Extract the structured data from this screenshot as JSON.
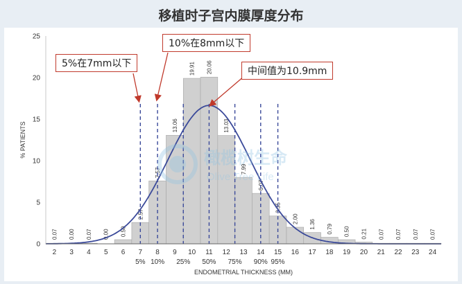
{
  "chart_data": {
    "type": "bar",
    "title": "移植时子宫内膜厚度分布",
    "xlabel": "ENDOMETRIAL THICKNESS (MM)",
    "ylabel": "% PATIENTS",
    "ylim": [
      0,
      25
    ],
    "yticks": [
      0,
      5,
      10,
      15,
      20,
      25
    ],
    "categories": [
      "2",
      "3",
      "4",
      "5",
      "6",
      "7",
      "8",
      "9",
      "10",
      "11",
      "12",
      "13",
      "14",
      "15",
      "16",
      "17",
      "18",
      "19",
      "20",
      "21",
      "22",
      "23",
      "24"
    ],
    "values": [
      0.07,
      0.0,
      0.07,
      0.0,
      0.5,
      2.57,
      7.57,
      13.06,
      19.91,
      20.06,
      13.03,
      7.99,
      6.07,
      3.35,
      2.0,
      1.36,
      0.79,
      0.5,
      0.21,
      0.07,
      0.07,
      0.07,
      0.07
    ],
    "value_labels": [
      "0.07",
      "0.00",
      "0.07",
      "0.00",
      "0.50",
      "2.57",
      "7.57",
      "13.06",
      "19.91",
      "20.06",
      "13.03",
      "7.99",
      "6.07",
      "3.35",
      "2.00",
      "1.36",
      "0.79",
      "0.50",
      "0.21",
      "0.07",
      "0.07",
      "0.07",
      "0.07"
    ],
    "bar_color": "#d0d0d0",
    "bar_edge_color": "#a6a6a6",
    "curve": {
      "type": "normal-fit",
      "mean": 11.0,
      "sd": 2.4,
      "color": "#3b4a9a"
    },
    "percentile_lines": [
      {
        "x": 7,
        "label": "5%"
      },
      {
        "x": 8,
        "label": "10%"
      },
      {
        "x": 9.5,
        "label": "25%"
      },
      {
        "x": 11,
        "label": "50%"
      },
      {
        "x": 12.5,
        "label": "75%"
      },
      {
        "x": 14,
        "label": "90%"
      },
      {
        "x": 15,
        "label": "95%"
      }
    ],
    "percentile_line_color": "#3b4a9a",
    "annotations": [
      {
        "text": "5%在7mm以下",
        "target_x": 7
      },
      {
        "text": "10%在8mm以下",
        "target_x": 8
      },
      {
        "text": "中间值为10.9mm",
        "target_x": 10.9
      }
    ],
    "annotation_color": "#c0392b",
    "grid": false
  },
  "watermark": {
    "text_cn": "橄榄树生命",
    "text_en": "Olive Tree Life",
    "color": "#8fc3e3"
  }
}
